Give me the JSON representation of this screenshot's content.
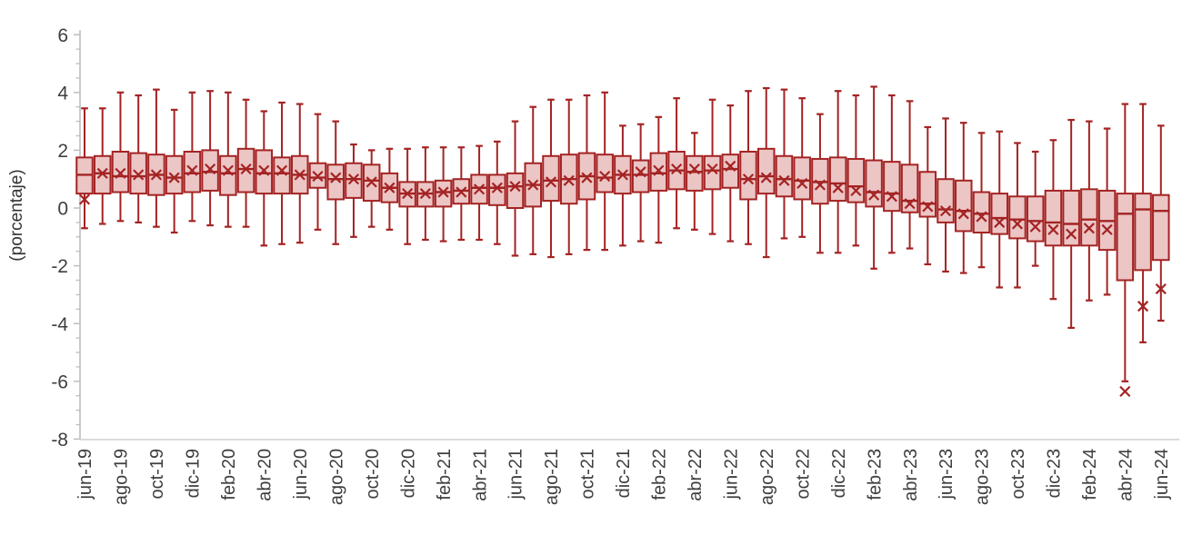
{
  "chart_data": {
    "type": "boxplot",
    "title": "",
    "xlabel": "",
    "ylabel": "(porcentaje)",
    "ylim": [
      -8,
      6
    ],
    "y_major_ticks": [
      6,
      4,
      2,
      0,
      -2,
      -4,
      -6,
      -8
    ],
    "y_minor_step": 0.5,
    "x_label_every": 2,
    "grid": "off",
    "legend": "none",
    "colors": {
      "box_fill": "#ECC5C5",
      "box_stroke": "#A42323",
      "whisker": "#A42323",
      "mean_marker": "#A42323",
      "axis_line": "#BDBDBD",
      "tick_label": "#3F3F3F"
    },
    "mean_marker_glyph": "x",
    "series": [
      {
        "month": "jun-19",
        "lo": -0.7,
        "q1": 0.5,
        "med": 1.15,
        "q3": 1.75,
        "hi": 3.45,
        "mean": 0.3
      },
      {
        "month": "jul-19",
        "lo": -0.55,
        "q1": 0.5,
        "med": 1.2,
        "q3": 1.8,
        "hi": 3.45,
        "mean": 1.2
      },
      {
        "month": "ago-19",
        "lo": -0.45,
        "q1": 0.55,
        "med": 1.1,
        "q3": 1.95,
        "hi": 4.0,
        "mean": 1.2
      },
      {
        "month": "sep-19",
        "lo": -0.5,
        "q1": 0.5,
        "med": 1.1,
        "q3": 1.9,
        "hi": 3.9,
        "mean": 1.15
      },
      {
        "month": "oct-19",
        "lo": -0.65,
        "q1": 0.45,
        "med": 1.15,
        "q3": 1.85,
        "hi": 4.1,
        "mean": 1.15
      },
      {
        "month": "nov-19",
        "lo": -0.85,
        "q1": 0.5,
        "med": 1.05,
        "q3": 1.8,
        "hi": 3.4,
        "mean": 1.05
      },
      {
        "month": "dic-19",
        "lo": -0.45,
        "q1": 0.55,
        "med": 1.2,
        "q3": 1.95,
        "hi": 4.0,
        "mean": 1.3
      },
      {
        "month": "ene-20",
        "lo": -0.6,
        "q1": 0.6,
        "med": 1.25,
        "q3": 2.0,
        "hi": 4.05,
        "mean": 1.35
      },
      {
        "month": "feb-20",
        "lo": -0.65,
        "q1": 0.45,
        "med": 1.2,
        "q3": 1.8,
        "hi": 4.0,
        "mean": 1.3
      },
      {
        "month": "mar-20",
        "lo": -0.65,
        "q1": 0.55,
        "med": 1.35,
        "q3": 2.05,
        "hi": 3.75,
        "mean": 1.35
      },
      {
        "month": "abr-20",
        "lo": -1.3,
        "q1": 0.5,
        "med": 1.2,
        "q3": 2.0,
        "hi": 3.35,
        "mean": 1.3
      },
      {
        "month": "may-20",
        "lo": -1.25,
        "q1": 0.5,
        "med": 1.2,
        "q3": 1.75,
        "hi": 3.65,
        "mean": 1.3
      },
      {
        "month": "jun-20",
        "lo": -1.2,
        "q1": 0.5,
        "med": 1.15,
        "q3": 1.8,
        "hi": 3.6,
        "mean": 1.15
      },
      {
        "month": "jul-20",
        "lo": -0.75,
        "q1": 0.7,
        "med": 1.05,
        "q3": 1.55,
        "hi": 3.25,
        "mean": 1.1
      },
      {
        "month": "ago-20",
        "lo": -1.25,
        "q1": 0.3,
        "med": 1.0,
        "q3": 1.5,
        "hi": 3.0,
        "mean": 1.05
      },
      {
        "month": "sep-20",
        "lo": -1.0,
        "q1": 0.35,
        "med": 1.0,
        "q3": 1.55,
        "hi": 2.2,
        "mean": 1.0
      },
      {
        "month": "oct-20",
        "lo": -0.65,
        "q1": 0.25,
        "med": 0.95,
        "q3": 1.5,
        "hi": 2.0,
        "mean": 0.9
      },
      {
        "month": "nov-20",
        "lo": -0.75,
        "q1": 0.2,
        "med": 0.7,
        "q3": 1.2,
        "hi": 2.05,
        "mean": 0.7
      },
      {
        "month": "dic-20",
        "lo": -1.25,
        "q1": 0.05,
        "med": 0.5,
        "q3": 0.9,
        "hi": 2.05,
        "mean": 0.5
      },
      {
        "month": "ene-21",
        "lo": -1.1,
        "q1": 0.05,
        "med": 0.5,
        "q3": 0.9,
        "hi": 2.1,
        "mean": 0.5
      },
      {
        "month": "feb-21",
        "lo": -1.15,
        "q1": 0.05,
        "med": 0.55,
        "q3": 0.95,
        "hi": 2.1,
        "mean": 0.55
      },
      {
        "month": "mar-21",
        "lo": -1.1,
        "q1": 0.15,
        "med": 0.6,
        "q3": 1.0,
        "hi": 2.1,
        "mean": 0.55
      },
      {
        "month": "abr-21",
        "lo": -1.1,
        "q1": 0.15,
        "med": 0.7,
        "q3": 1.15,
        "hi": 2.15,
        "mean": 0.65
      },
      {
        "month": "may-21",
        "lo": -1.25,
        "q1": 0.1,
        "med": 0.7,
        "q3": 1.15,
        "hi": 2.3,
        "mean": 0.7
      },
      {
        "month": "jun-21",
        "lo": -1.65,
        "q1": 0.0,
        "med": 0.75,
        "q3": 1.2,
        "hi": 3.0,
        "mean": 0.75
      },
      {
        "month": "jul-21",
        "lo": -1.6,
        "q1": 0.05,
        "med": 0.8,
        "q3": 1.55,
        "hi": 3.5,
        "mean": 0.8
      },
      {
        "month": "ago-21",
        "lo": -1.7,
        "q1": 0.25,
        "med": 0.95,
        "q3": 1.8,
        "hi": 3.75,
        "mean": 0.9
      },
      {
        "month": "sep-21",
        "lo": -1.6,
        "q1": 0.15,
        "med": 1.0,
        "q3": 1.85,
        "hi": 3.75,
        "mean": 0.95
      },
      {
        "month": "oct-21",
        "lo": -1.45,
        "q1": 0.3,
        "med": 1.1,
        "q3": 1.9,
        "hi": 3.9,
        "mean": 1.05
      },
      {
        "month": "nov-21",
        "lo": -1.45,
        "q1": 0.55,
        "med": 1.05,
        "q3": 1.85,
        "hi": 4.0,
        "mean": 1.1
      },
      {
        "month": "dic-21",
        "lo": -1.3,
        "q1": 0.5,
        "med": 1.15,
        "q3": 1.8,
        "hi": 2.85,
        "mean": 1.15
      },
      {
        "month": "ene-22",
        "lo": -1.15,
        "q1": 0.55,
        "med": 1.15,
        "q3": 1.65,
        "hi": 2.9,
        "mean": 1.25
      },
      {
        "month": "feb-22",
        "lo": -1.2,
        "q1": 0.6,
        "med": 1.2,
        "q3": 1.9,
        "hi": 3.15,
        "mean": 1.3
      },
      {
        "month": "mar-22",
        "lo": -0.7,
        "q1": 0.65,
        "med": 1.3,
        "q3": 1.95,
        "hi": 3.8,
        "mean": 1.35
      },
      {
        "month": "abr-22",
        "lo": -0.75,
        "q1": 0.6,
        "med": 1.25,
        "q3": 1.8,
        "hi": 2.6,
        "mean": 1.35
      },
      {
        "month": "may-22",
        "lo": -0.9,
        "q1": 0.65,
        "med": 1.3,
        "q3": 1.8,
        "hi": 3.75,
        "mean": 1.35
      },
      {
        "month": "jun-22",
        "lo": -1.15,
        "q1": 0.7,
        "med": 1.35,
        "q3": 1.85,
        "hi": 3.55,
        "mean": 1.45
      },
      {
        "month": "jul-22",
        "lo": -1.25,
        "q1": 0.3,
        "med": 1.0,
        "q3": 1.95,
        "hi": 4.05,
        "mean": 1.0
      },
      {
        "month": "ago-22",
        "lo": -1.7,
        "q1": 0.5,
        "med": 1.1,
        "q3": 2.05,
        "hi": 4.15,
        "mean": 1.05
      },
      {
        "month": "sep-22",
        "lo": -1.05,
        "q1": 0.4,
        "med": 1.0,
        "q3": 1.8,
        "hi": 4.1,
        "mean": 0.95
      },
      {
        "month": "oct-22",
        "lo": -1.0,
        "q1": 0.3,
        "med": 0.95,
        "q3": 1.75,
        "hi": 3.8,
        "mean": 0.85
      },
      {
        "month": "nov-22",
        "lo": -1.55,
        "q1": 0.15,
        "med": 0.9,
        "q3": 1.7,
        "hi": 3.25,
        "mean": 0.8
      },
      {
        "month": "dic-22",
        "lo": -1.55,
        "q1": 0.25,
        "med": 0.85,
        "q3": 1.75,
        "hi": 4.05,
        "mean": 0.7
      },
      {
        "month": "ene-23",
        "lo": -1.3,
        "q1": 0.2,
        "med": 0.75,
        "q3": 1.7,
        "hi": 3.9,
        "mean": 0.6
      },
      {
        "month": "feb-23",
        "lo": -2.1,
        "q1": 0.05,
        "med": 0.55,
        "q3": 1.65,
        "hi": 4.2,
        "mean": 0.45
      },
      {
        "month": "mar-23",
        "lo": -1.55,
        "q1": -0.1,
        "med": 0.5,
        "q3": 1.6,
        "hi": 3.9,
        "mean": 0.4
      },
      {
        "month": "abr-23",
        "lo": -1.4,
        "q1": -0.15,
        "med": 0.25,
        "q3": 1.5,
        "hi": 3.7,
        "mean": 0.15
      },
      {
        "month": "may-23",
        "lo": -1.95,
        "q1": -0.3,
        "med": 0.15,
        "q3": 1.25,
        "hi": 2.8,
        "mean": 0.05
      },
      {
        "month": "jun-23",
        "lo": -2.2,
        "q1": -0.5,
        "med": -0.05,
        "q3": 1.0,
        "hi": 3.1,
        "mean": -0.1
      },
      {
        "month": "jul-23",
        "lo": -2.25,
        "q1": -0.8,
        "med": -0.1,
        "q3": 0.95,
        "hi": 2.95,
        "mean": -0.2
      },
      {
        "month": "ago-23",
        "lo": -2.05,
        "q1": -0.85,
        "med": -0.2,
        "q3": 0.55,
        "hi": 2.6,
        "mean": -0.3
      },
      {
        "month": "sep-23",
        "lo": -2.75,
        "q1": -0.9,
        "med": -0.35,
        "q3": 0.5,
        "hi": 2.65,
        "mean": -0.5
      },
      {
        "month": "oct-23",
        "lo": -2.75,
        "q1": -1.05,
        "med": -0.4,
        "q3": 0.4,
        "hi": 2.25,
        "mean": -0.55
      },
      {
        "month": "nov-23",
        "lo": -2.0,
        "q1": -1.15,
        "med": -0.45,
        "q3": 0.4,
        "hi": 1.95,
        "mean": -0.65
      },
      {
        "month": "dic-23",
        "lo": -3.15,
        "q1": -1.3,
        "med": -0.5,
        "q3": 0.6,
        "hi": 2.35,
        "mean": -0.75
      },
      {
        "month": "ene-24",
        "lo": -4.15,
        "q1": -1.3,
        "med": -0.55,
        "q3": 0.6,
        "hi": 3.05,
        "mean": -0.9
      },
      {
        "month": "feb-24",
        "lo": -3.2,
        "q1": -1.3,
        "med": -0.4,
        "q3": 0.65,
        "hi": 3.0,
        "mean": -0.7
      },
      {
        "month": "mar-24",
        "lo": -3.0,
        "q1": -1.45,
        "med": -0.45,
        "q3": 0.6,
        "hi": 2.75,
        "mean": -0.75
      },
      {
        "month": "abr-24",
        "lo": -6.0,
        "q1": -2.5,
        "med": -0.2,
        "q3": 0.5,
        "hi": 3.6,
        "mean": -6.35
      },
      {
        "month": "may-24",
        "lo": -4.65,
        "q1": -2.15,
        "med": -0.05,
        "q3": 0.5,
        "hi": 3.6,
        "mean": -3.4
      },
      {
        "month": "jun-24",
        "lo": -3.9,
        "q1": -1.8,
        "med": -0.1,
        "q3": 0.45,
        "hi": 2.85,
        "mean": -2.8
      }
    ]
  }
}
